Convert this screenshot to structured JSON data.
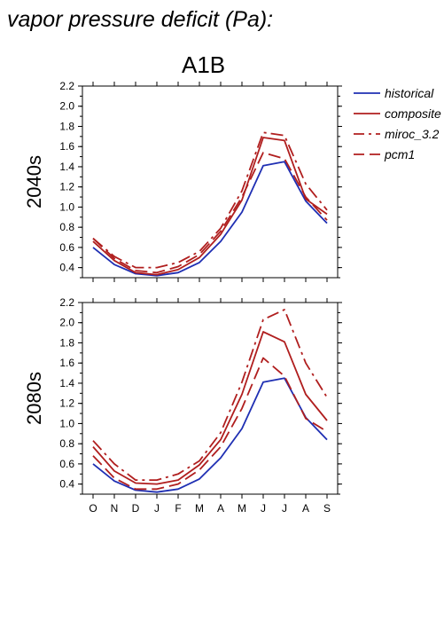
{
  "title": "vapor pressure deficit (Pa):",
  "scenario": "A1B",
  "chart_data": {
    "type": "line",
    "categories": [
      "O",
      "N",
      "D",
      "J",
      "F",
      "M",
      "A",
      "M",
      "J",
      "J",
      "A",
      "S"
    ],
    "ylim": [
      0.3,
      2.2
    ],
    "yticks": [
      0.4,
      0.6,
      0.8,
      1.0,
      1.2,
      1.4,
      1.6,
      1.8,
      2.0,
      2.2
    ],
    "legend_position": "right",
    "legend": [
      {
        "name": "historical",
        "color": "#1f2fb3",
        "dash": "solid"
      },
      {
        "name": "composite",
        "color": "#b01e1e",
        "dash": "solid"
      },
      {
        "name": "miroc_3.2",
        "color": "#b01e1e",
        "dash": "dashdot"
      },
      {
        "name": "pcm1",
        "color": "#b01e1e",
        "dash": "dash"
      }
    ],
    "panels": [
      {
        "label": "2040s",
        "series": [
          {
            "name": "historical",
            "values": [
              0.6,
              0.43,
              0.34,
              0.32,
              0.35,
              0.45,
              0.66,
              0.95,
              1.41,
              1.45,
              1.06,
              0.84
            ]
          },
          {
            "name": "composite",
            "values": [
              0.66,
              0.47,
              0.35,
              0.33,
              0.38,
              0.5,
              0.73,
              1.07,
              1.69,
              1.66,
              1.08,
              0.93
            ]
          },
          {
            "name": "miroc_3.2",
            "values": [
              0.69,
              0.51,
              0.4,
              0.4,
              0.45,
              0.56,
              0.79,
              1.16,
              1.74,
              1.71,
              1.23,
              0.97
            ]
          },
          {
            "name": "pcm1",
            "values": [
              0.69,
              0.49,
              0.37,
              0.35,
              0.41,
              0.53,
              0.76,
              1.1,
              1.54,
              1.48,
              1.1,
              0.87
            ]
          }
        ]
      },
      {
        "label": "2080s",
        "series": [
          {
            "name": "historical",
            "values": [
              0.6,
              0.43,
              0.34,
              0.32,
              0.35,
              0.45,
              0.66,
              0.95,
              1.41,
              1.45,
              1.06,
              0.84
            ]
          },
          {
            "name": "composite",
            "values": [
              0.77,
              0.53,
              0.41,
              0.4,
              0.44,
              0.59,
              0.84,
              1.29,
              1.91,
              1.81,
              1.29,
              1.03
            ]
          },
          {
            "name": "miroc_3.2",
            "values": [
              0.83,
              0.6,
              0.44,
              0.44,
              0.5,
              0.63,
              0.91,
              1.41,
              2.03,
              2.13,
              1.6,
              1.26
            ]
          },
          {
            "name": "pcm1",
            "values": [
              0.68,
              0.46,
              0.35,
              0.35,
              0.4,
              0.54,
              0.77,
              1.15,
              1.65,
              1.47,
              1.05,
              0.92
            ]
          }
        ]
      }
    ]
  }
}
